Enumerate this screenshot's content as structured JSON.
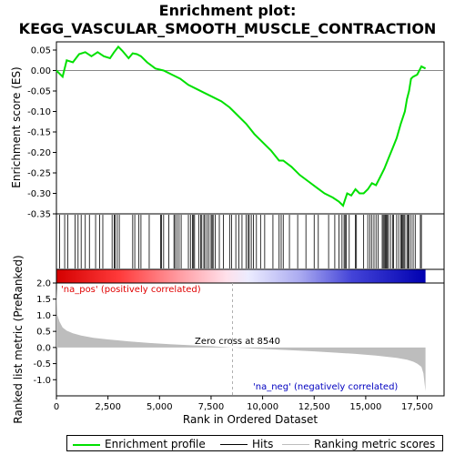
{
  "title_line1": "Enrichment plot:",
  "title_line2": "KEGG_VASCULAR_SMOOTH_MUSCLE_CONTRACTION",
  "legend": {
    "enrichment_profile": "Enrichment profile",
    "hits": "Hits",
    "ranking_metric_scores": "Ranking metric scores"
  },
  "colors": {
    "enrichment_line": "#00e000",
    "hits": "#000000",
    "ranking_fill": "#bdbdbd",
    "pos_label": "#e00000",
    "neg_label": "#0000c0",
    "zero_line": "#b0b0b0"
  },
  "chart_data": [
    {
      "type": "line",
      "ylabel": "Enrichment score (ES)",
      "ylim": [
        -0.35,
        0.07
      ],
      "yticks": [
        "0.05",
        "0.00",
        "-0.05",
        "-0.10",
        "-0.15",
        "-0.20",
        "-0.25",
        "-0.30",
        "-0.35"
      ],
      "ytick_values": [
        0.05,
        0.0,
        -0.05,
        -0.1,
        -0.15,
        -0.2,
        -0.25,
        -0.3,
        -0.35
      ],
      "xlim": [
        0,
        18800
      ],
      "series": [
        {
          "x": [
            0,
            300,
            500,
            800,
            1100,
            1400,
            1700,
            2000,
            2300,
            2600,
            2800,
            3000,
            3200,
            3500,
            3700,
            3900,
            4100,
            4400,
            4800,
            5200,
            5600,
            6000,
            6400,
            6800,
            7200,
            7600,
            8000,
            8400,
            8800,
            9200,
            9600,
            10000,
            10400,
            10800,
            11000,
            11400,
            11800,
            12200,
            12600,
            13000,
            13400,
            13700,
            13900,
            14100,
            14300,
            14500,
            14700,
            14900,
            15100,
            15300,
            15500,
            15700,
            15900,
            16100,
            16300,
            16500,
            16700,
            16900,
            17000,
            17100,
            17200,
            17300,
            17500,
            17700,
            17900
          ],
          "values": [
            0.0,
            -0.015,
            0.025,
            0.02,
            0.04,
            0.045,
            0.035,
            0.045,
            0.035,
            0.03,
            0.045,
            0.058,
            0.048,
            0.03,
            0.042,
            0.04,
            0.035,
            0.02,
            0.005,
            0.0,
            -0.01,
            -0.02,
            -0.035,
            -0.045,
            -0.055,
            -0.065,
            -0.075,
            -0.09,
            -0.11,
            -0.13,
            -0.155,
            -0.175,
            -0.195,
            -0.22,
            -0.22,
            -0.235,
            -0.255,
            -0.27,
            -0.285,
            -0.3,
            -0.31,
            -0.32,
            -0.33,
            -0.3,
            -0.305,
            -0.29,
            -0.3,
            -0.3,
            -0.29,
            -0.275,
            -0.28,
            -0.26,
            -0.24,
            -0.215,
            -0.19,
            -0.165,
            -0.13,
            -0.1,
            -0.07,
            -0.05,
            -0.02,
            -0.015,
            -0.01,
            0.01,
            0.005
          ]
        }
      ]
    },
    {
      "type": "hits",
      "positions": [
        150,
        400,
        550,
        900,
        1050,
        1200,
        1400,
        1600,
        1900,
        2100,
        2250,
        2700,
        2800,
        2850,
        2950,
        3050,
        3700,
        3800,
        4000,
        4100,
        4500,
        5050,
        5100,
        5200,
        5450,
        5700,
        5750,
        5850,
        5950,
        6050,
        6400,
        6500,
        6600,
        6650,
        6700,
        6900,
        7000,
        7050,
        7150,
        7200,
        7300,
        7400,
        7500,
        7550,
        7600,
        7700,
        7900,
        8100,
        8400,
        8500,
        8700,
        8850,
        9000,
        9200,
        9300,
        9350,
        9450,
        9550,
        9700,
        9900,
        10100,
        10500,
        10800,
        10900,
        11000,
        11300,
        11700,
        12100,
        12500,
        12700,
        13200,
        13500,
        13700,
        13850,
        13950,
        14000,
        14050,
        14200,
        14500,
        14550,
        14900,
        15100,
        15200,
        15300,
        15400,
        15500,
        15600,
        15800,
        15850,
        15900,
        15950,
        16000,
        16050,
        16100,
        16200,
        16300,
        16350,
        16500,
        16600,
        16700,
        16750,
        16800,
        16850,
        16900,
        17000,
        17050,
        17100,
        17200,
        17300,
        17400,
        17650,
        17700
      ]
    },
    {
      "type": "area",
      "ylabel": "Ranked list metric (PreRanked)",
      "xlabel": "Rank in Ordered Dataset",
      "ylim": [
        -1.5,
        2.0
      ],
      "yticks": [
        "2.0",
        "1.5",
        "1.0",
        "0.5",
        "0.0",
        "-0.5",
        "-1.0"
      ],
      "ytick_values": [
        2.0,
        1.5,
        1.0,
        0.5,
        0.0,
        -0.5,
        -1.0
      ],
      "xticks": [
        "0",
        "2,500",
        "5,000",
        "7,500",
        "10,000",
        "12,500",
        "15,000",
        "17,500"
      ],
      "xtick_values": [
        0,
        2500,
        5000,
        7500,
        10000,
        12500,
        15000,
        17500
      ],
      "x": [
        0,
        50,
        150,
        300,
        500,
        800,
        1200,
        1800,
        2500,
        3500,
        4500,
        5500,
        6500,
        7500,
        8540,
        9500,
        10500,
        11500,
        12500,
        13500,
        14500,
        15500,
        16500,
        17000,
        17300,
        17500,
        17700,
        17800,
        17850,
        17900
      ],
      "values": [
        1.85,
        1.0,
        0.8,
        0.62,
        0.52,
        0.44,
        0.37,
        0.3,
        0.25,
        0.19,
        0.14,
        0.1,
        0.07,
        0.04,
        0.0,
        -0.03,
        -0.06,
        -0.09,
        -0.12,
        -0.16,
        -0.2,
        -0.25,
        -0.32,
        -0.38,
        -0.44,
        -0.5,
        -0.6,
        -0.8,
        -1.1,
        -1.35
      ],
      "zero_cross_value": 8540,
      "annotations": {
        "pos": "'na_pos' (positively correlated)",
        "neg": "'na_neg' (negatively correlated)",
        "zero_cross": "Zero cross at 8540"
      }
    }
  ]
}
